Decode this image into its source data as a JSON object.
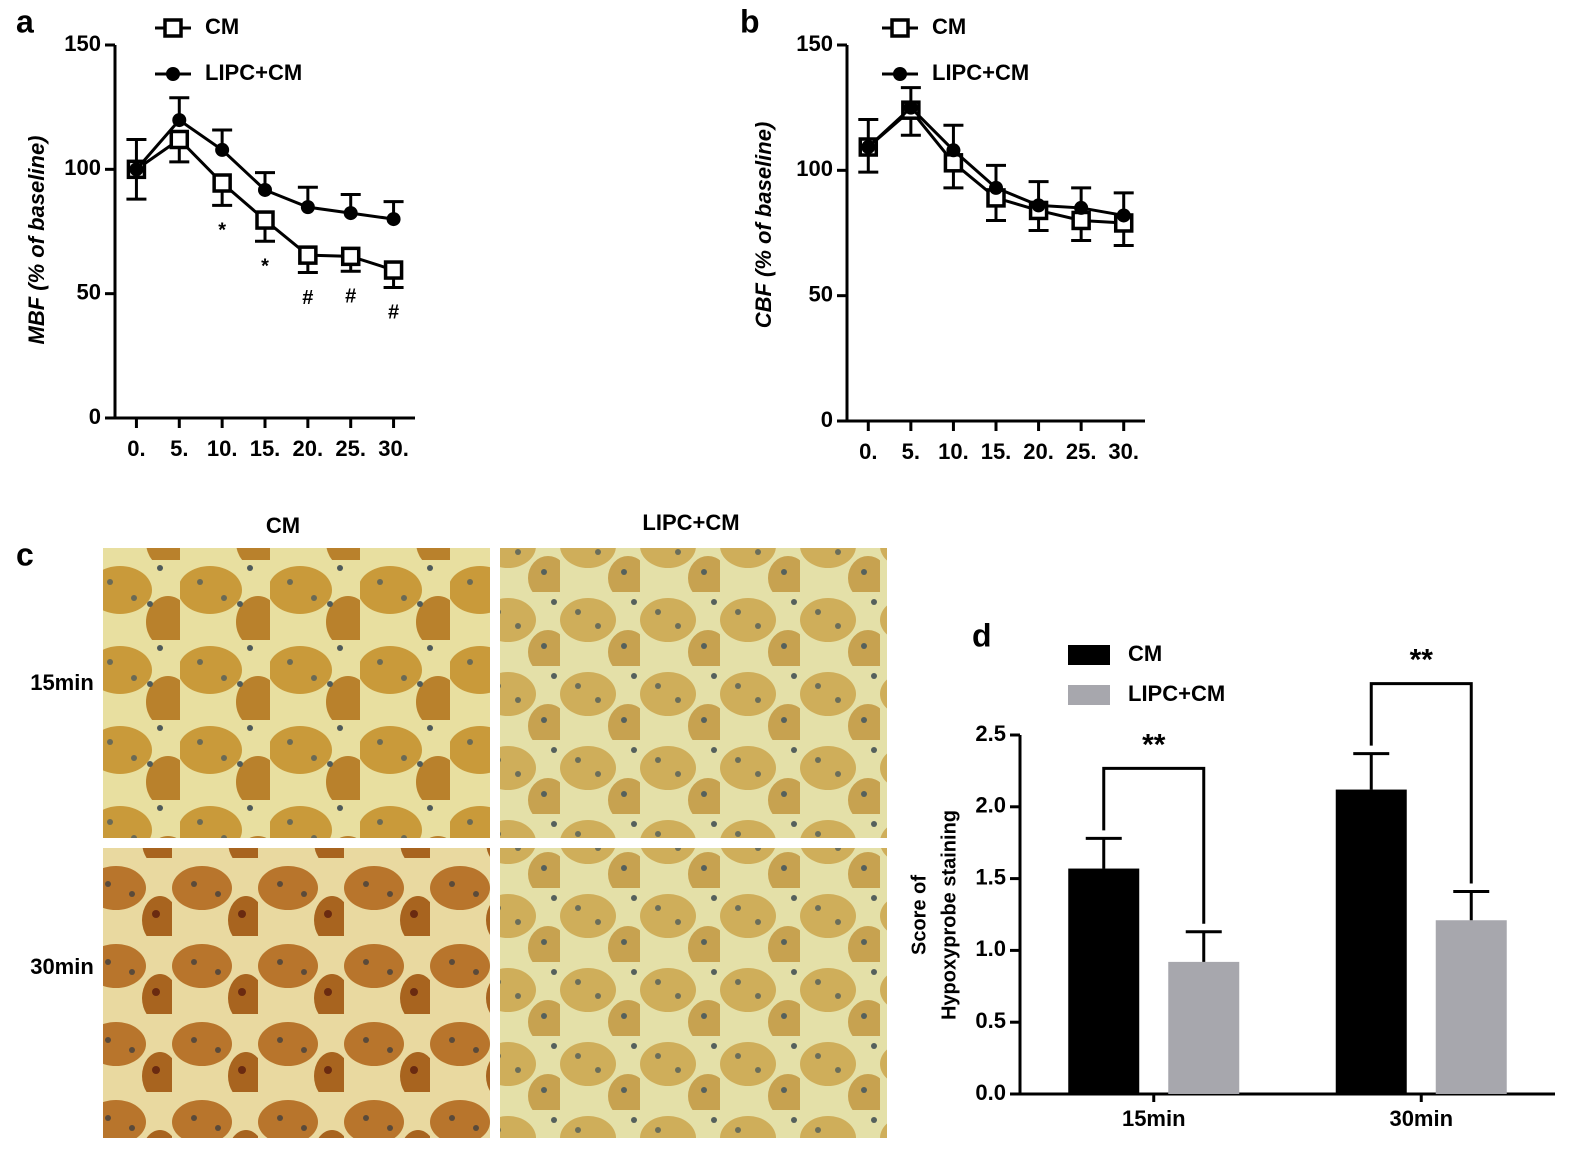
{
  "chart_data": [
    {
      "type": "line",
      "panel_label": "a",
      "ylabel": "MBF (% of baseline)",
      "x": [
        0,
        5,
        10,
        15,
        20,
        25,
        30
      ],
      "xticks": [
        {
          "value": 0,
          "label": "0."
        },
        {
          "value": 5,
          "label": "5."
        },
        {
          "value": 10,
          "label": "10."
        },
        {
          "value": 15,
          "label": "15."
        },
        {
          "value": 20,
          "label": "20."
        },
        {
          "value": 25,
          "label": "25."
        },
        {
          "value": 30,
          "label": "30."
        }
      ],
      "xlim": [
        -2.5,
        32.5
      ],
      "ylim": [
        0,
        150
      ],
      "yticks": [
        0,
        50,
        100,
        150
      ],
      "series": [
        {
          "name": "CM",
          "color": "#000000",
          "marker": "square-open",
          "error_direction": "down",
          "values": [
            100,
            112,
            94.5,
            79.6,
            65.5,
            65,
            59.5
          ],
          "errors": [
            12,
            9,
            9,
            8.5,
            7,
            6,
            7
          ]
        },
        {
          "name": "LIPC+CM",
          "color": "#000000",
          "marker": "circle-filled",
          "error_direction": "up",
          "values": [
            100,
            119.8,
            107.8,
            91.7,
            84.8,
            82.4,
            80
          ],
          "errors": [
            12,
            9,
            8,
            7,
            8,
            7.5,
            7
          ]
        }
      ],
      "annotations": [
        null,
        null,
        "*",
        "*",
        "#",
        "#",
        "#"
      ]
    },
    {
      "type": "line",
      "panel_label": "b",
      "ylabel": "CBF (% of baseline)",
      "x": [
        0,
        5,
        10,
        15,
        20,
        25,
        30
      ],
      "xticks": [
        {
          "value": 0,
          "label": "0."
        },
        {
          "value": 5,
          "label": "5."
        },
        {
          "value": 10,
          "label": "10."
        },
        {
          "value": 15,
          "label": "15."
        },
        {
          "value": 20,
          "label": "20."
        },
        {
          "value": 25,
          "label": "25."
        },
        {
          "value": 30,
          "label": "30."
        }
      ],
      "xlim": [
        -2.5,
        32.5
      ],
      "ylim": [
        0,
        150
      ],
      "yticks": [
        0,
        50,
        100,
        150
      ],
      "series": [
        {
          "name": "CM",
          "color": "#000000",
          "marker": "square-open",
          "error_direction": "down",
          "values": [
            109.3,
            124,
            103,
            89,
            84,
            80,
            79
          ],
          "errors": [
            10,
            10,
            10,
            9,
            8,
            8,
            9
          ]
        },
        {
          "name": "LIPC+CM",
          "color": "#000000",
          "marker": "circle-filled",
          "error_direction": "up",
          "values": [
            109.3,
            125,
            108,
            93,
            86,
            85,
            82
          ],
          "errors": [
            11,
            8,
            10,
            9,
            9.5,
            8,
            9
          ]
        }
      ],
      "annotations": []
    },
    {
      "type": "bar",
      "panel_label": "d",
      "ylabel": [
        "Score of",
        "Hypoxyprobe staining"
      ],
      "categories": [
        "15min",
        "30min"
      ],
      "ylim": [
        0,
        2.5
      ],
      "yticks": [
        {
          "value": 0,
          "label": "0.0"
        },
        0.5,
        {
          "value": 1,
          "label": "1.0"
        },
        1.5,
        {
          "value": 2,
          "label": "2.0"
        },
        2.5
      ],
      "series": [
        {
          "name": "CM",
          "color": "#000000",
          "values": [
            1.57,
            2.12
          ],
          "errors": [
            0.21,
            0.25
          ]
        },
        {
          "name": "LIPC+CM",
          "color": "#a7a7ad",
          "values": [
            0.92,
            1.21
          ],
          "errors": [
            0.21,
            0.2
          ]
        }
      ],
      "significance": [
        "**",
        "**"
      ]
    }
  ],
  "panel_c": {
    "panel_label": "c",
    "columns": [
      "CM",
      "LIPC+CM"
    ],
    "rows": [
      "15min",
      "30min"
    ]
  }
}
